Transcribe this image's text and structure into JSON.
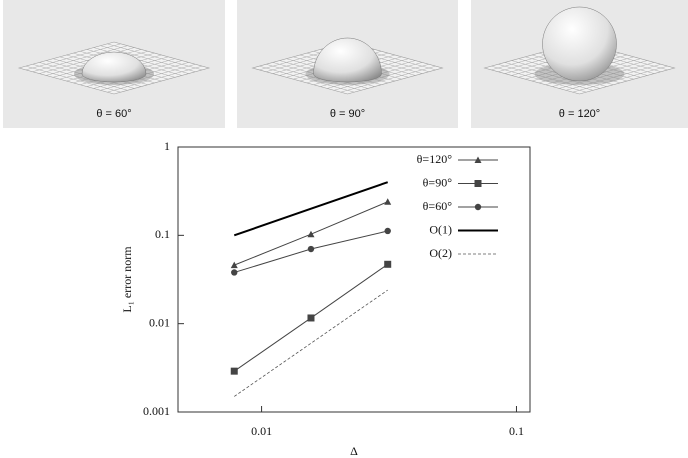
{
  "panels": [
    {
      "caption": "θ = 60°"
    },
    {
      "caption": "θ = 90°"
    },
    {
      "caption": "θ = 120°"
    }
  ],
  "chart_data": {
    "type": "line",
    "x_label": "Δ",
    "y_label": "L₁ error norm",
    "log_x": true,
    "log_y": true,
    "xlim": [
      0.0047,
      0.113
    ],
    "ylim": [
      0.001,
      1
    ],
    "xticks": [
      0.01,
      0.1
    ],
    "yticks": [
      0.001,
      0.01,
      0.1,
      1
    ],
    "legend": "top-right",
    "series": [
      {
        "name": "θ=120°",
        "color": "#444444",
        "marker": "triangle",
        "x": [
          0.0078125,
          0.015625,
          0.03125
        ],
        "values": [
          0.046,
          0.103,
          0.24
        ]
      },
      {
        "name": "θ=90°",
        "color": "#444444",
        "marker": "square",
        "x": [
          0.0078125,
          0.015625,
          0.03125
        ],
        "values": [
          0.0029,
          0.0116,
          0.047
        ]
      },
      {
        "name": "θ=60°",
        "color": "#444444",
        "marker": "circle",
        "x": [
          0.0078125,
          0.015625,
          0.03125
        ],
        "values": [
          0.038,
          0.07,
          0.112
        ]
      },
      {
        "name": "O(1)",
        "color": "#000000",
        "width": 2,
        "x": [
          0.0078125,
          0.015625,
          0.03125
        ],
        "values": [
          0.1,
          0.2,
          0.4
        ]
      },
      {
        "name": "O(2)",
        "color": "#555555",
        "width": 0.8,
        "dashed": true,
        "x": [
          0.0078125,
          0.015625,
          0.03125
        ],
        "values": [
          0.0015,
          0.006,
          0.024
        ]
      }
    ]
  }
}
